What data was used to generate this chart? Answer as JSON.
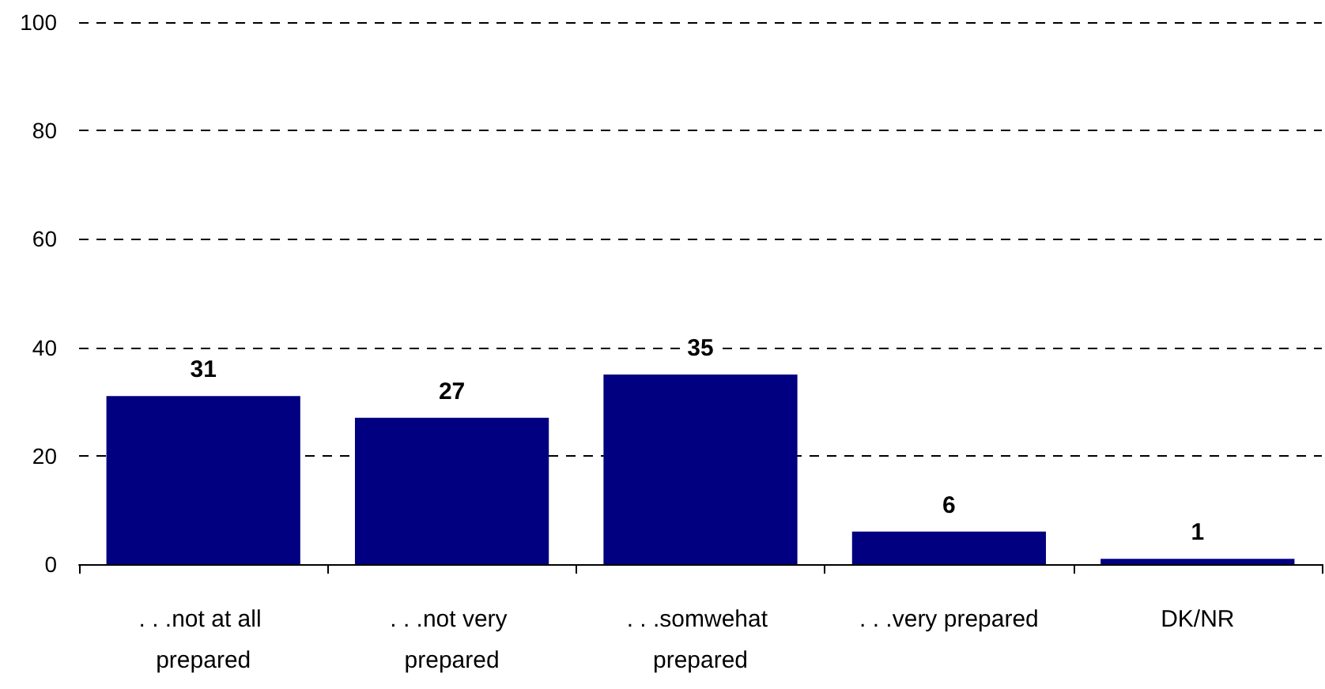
{
  "chart_data": {
    "type": "bar",
    "categories": [
      ". . .not at all prepared",
      ". . .not very prepared",
      ". . .somwehat prepared",
      ". . .very prepared",
      "DK/NR"
    ],
    "values": [
      31,
      27,
      35,
      6,
      1
    ],
    "color": "#000080",
    "ylim": [
      0,
      100
    ],
    "yticks": [
      0,
      20,
      40,
      60,
      80,
      100
    ],
    "grid": "y",
    "data_labels": true
  }
}
